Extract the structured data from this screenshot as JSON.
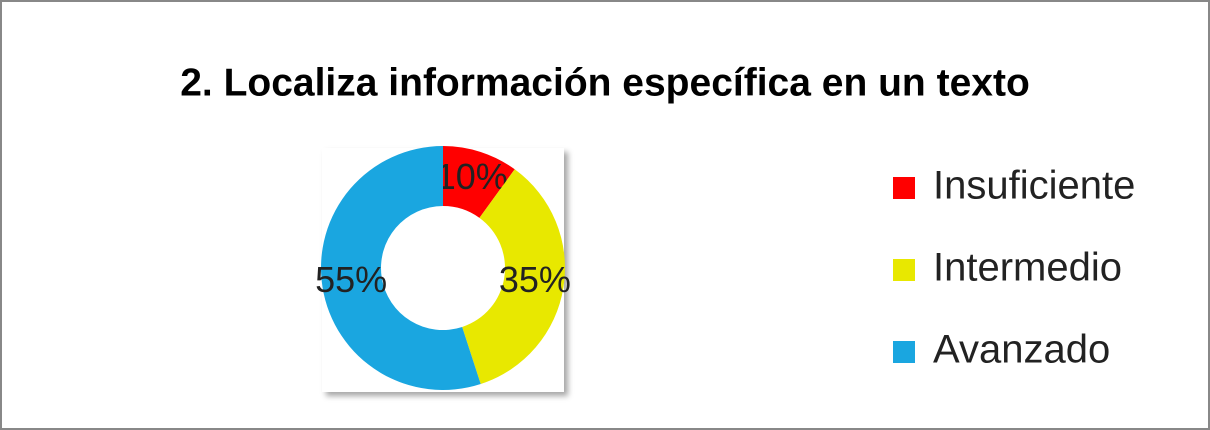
{
  "chart_data": {
    "type": "donut",
    "title": "2. Localiza información específica en un texto",
    "categories": [
      "Insuficiente",
      "Intermedio",
      "Avanzado"
    ],
    "values": [
      10,
      35,
      55
    ],
    "value_labels": [
      "10%",
      "35%",
      "55%"
    ],
    "colors": [
      "#ff0000",
      "#e8e800",
      "#1aa6e0"
    ],
    "legend": "right"
  }
}
